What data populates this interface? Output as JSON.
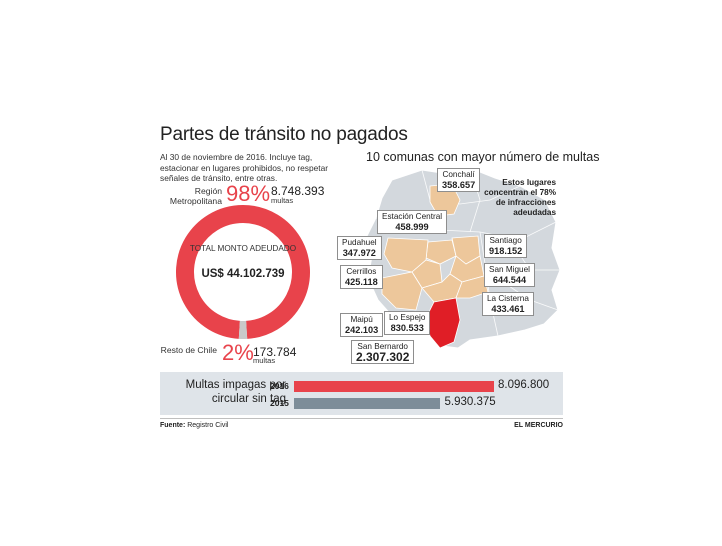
{
  "header": {
    "title": "Partes de tránsito no pagados",
    "intro": "Al 30 de noviembre de 2016. Incluye tag, estacionar en lugares prohibidos, no respetar señales de tránsito, entre otras."
  },
  "donut": {
    "region_label": "Región Metropolitana",
    "region_pct": "98%",
    "region_count": "8.748.393",
    "region_unit": "multas",
    "rest_label": "Resto de Chile",
    "rest_pct": "2%",
    "rest_count": "173.784",
    "rest_unit": "multas",
    "center_label": "TOTAL MONTO ADEUDADO",
    "center_value": "US$ 44.102.739"
  },
  "map": {
    "title": "10 comunas con mayor número de multas",
    "note": "Estos lugares concentran el 78% de infracciones adeudadas",
    "communes": [
      {
        "name": "Conchalí",
        "value": "358.657"
      },
      {
        "name": "Estación Central",
        "value": "458.999"
      },
      {
        "name": "Pudahuel",
        "value": "347.972"
      },
      {
        "name": "Santiago",
        "value": "918.152"
      },
      {
        "name": "San Miguel",
        "value": "644.544"
      },
      {
        "name": "Cerrillos",
        "value": "425.118"
      },
      {
        "name": "La Cisterna",
        "value": "433.461"
      },
      {
        "name": "Maipú",
        "value": "242.103"
      },
      {
        "name": "Lo Espejo",
        "value": "830.533"
      },
      {
        "name": "San Bernardo",
        "value": "2.307.302"
      }
    ]
  },
  "bars_section": {
    "title": "Multas impagas por circular sin tag"
  },
  "footer": {
    "source_label": "Fuente:",
    "source": "Registro Civil",
    "brand": "EL MERCURIO"
  },
  "colors": {
    "red": "#e8434b",
    "dark_red": "#e01e26",
    "grey_bar": "#7d8d99",
    "ring_grey": "#c9c9c9",
    "commune_fill": "#edc79b",
    "map_grey": "#d3d8dd",
    "strip_bg": "#dfe4e9"
  },
  "chart_data": [
    {
      "type": "pie",
      "labels": [
        "Región Metropolitana",
        "Resto de Chile"
      ],
      "values": [
        98,
        2
      ],
      "counts": [
        8748393,
        173784
      ]
    },
    {
      "type": "bar",
      "orientation": "horizontal",
      "categories": [
        "2016",
        "2015"
      ],
      "values": [
        8096800,
        5930375
      ],
      "value_labels": [
        "8.096.800",
        "5.930.375"
      ],
      "xlim": [
        0,
        8096800
      ]
    }
  ]
}
